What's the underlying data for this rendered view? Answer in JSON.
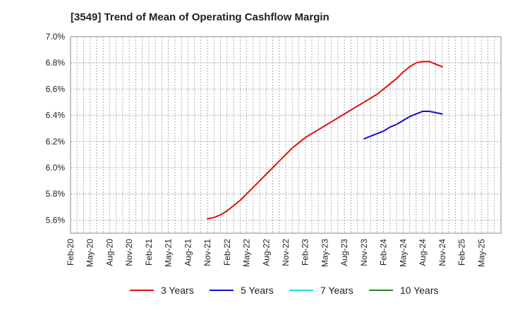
{
  "chart_data": {
    "type": "line",
    "title": "[3549]  Trend of Mean of Operating Cashflow Margin",
    "xlabel": "",
    "ylabel": "",
    "x_ticks": [
      "Feb-20",
      "May-20",
      "Aug-20",
      "Nov-20",
      "Feb-21",
      "May-21",
      "Aug-21",
      "Nov-21",
      "Feb-22",
      "May-22",
      "Aug-22",
      "Nov-22",
      "Feb-23",
      "May-23",
      "Aug-23",
      "Nov-23",
      "Feb-24",
      "May-24",
      "Aug-24",
      "Nov-24",
      "Feb-25",
      "May-25"
    ],
    "y_ticks": [
      "5.6%",
      "5.8%",
      "6.0%",
      "6.2%",
      "6.4%",
      "6.6%",
      "6.8%",
      "7.0%"
    ],
    "ylim": [
      5.5,
      7.0
    ],
    "grid": true,
    "legend_position": "bottom",
    "series": [
      {
        "name": "3 Years",
        "color": "#dd1111",
        "x": [
          "Nov-21",
          "Dec-21",
          "Jan-22",
          "Feb-22",
          "Mar-22",
          "Apr-22",
          "May-22",
          "Jun-22",
          "Jul-22",
          "Aug-22",
          "Sep-22",
          "Oct-22",
          "Nov-22",
          "Dec-22",
          "Jan-23",
          "Feb-23",
          "Mar-23",
          "Apr-23",
          "May-23",
          "Jun-23",
          "Jul-23",
          "Aug-23",
          "Sep-23",
          "Oct-23",
          "Nov-23",
          "Dec-23",
          "Jan-24",
          "Feb-24",
          "Mar-24",
          "Apr-24",
          "May-24",
          "Jun-24",
          "Jul-24",
          "Aug-24",
          "Sep-24",
          "Oct-24",
          "Nov-24"
        ],
        "values": [
          5.61,
          5.62,
          5.64,
          5.67,
          5.71,
          5.75,
          5.8,
          5.85,
          5.9,
          5.95,
          6.0,
          6.05,
          6.1,
          6.15,
          6.19,
          6.23,
          6.26,
          6.29,
          6.32,
          6.35,
          6.38,
          6.41,
          6.44,
          6.47,
          6.5,
          6.53,
          6.56,
          6.6,
          6.64,
          6.68,
          6.73,
          6.77,
          6.8,
          6.81,
          6.81,
          6.79,
          6.77
        ]
      },
      {
        "name": "5 Years",
        "color": "#1111cc",
        "x": [
          "Nov-23",
          "Dec-23",
          "Jan-24",
          "Feb-24",
          "Mar-24",
          "Apr-24",
          "May-24",
          "Jun-24",
          "Jul-24",
          "Aug-24",
          "Sep-24",
          "Oct-24",
          "Nov-24"
        ],
        "values": [
          6.22,
          6.24,
          6.26,
          6.28,
          6.31,
          6.33,
          6.36,
          6.39,
          6.41,
          6.43,
          6.43,
          6.42,
          6.41
        ]
      },
      {
        "name": "7 Years",
        "color": "#22dddd",
        "x": [],
        "values": []
      },
      {
        "name": "10 Years",
        "color": "#228822",
        "x": [],
        "values": []
      }
    ]
  }
}
